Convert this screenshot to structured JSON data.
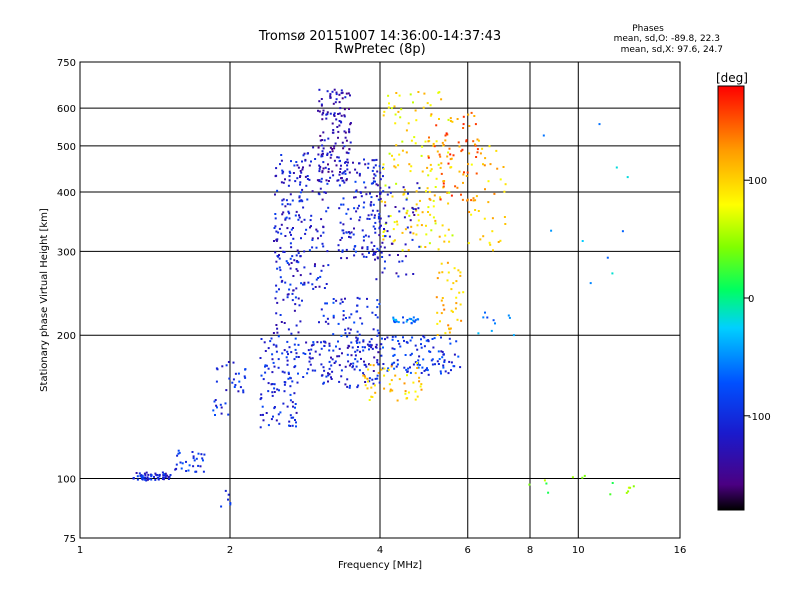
{
  "chart_data": {
    "type": "scatter",
    "title": "Tromsø 20151007 14:36:00-14:37:43",
    "subtitle": "RwPretec (8p)",
    "xlabel": "Frequency [MHz]",
    "ylabel": "Stationary phase Virtual Height [km]",
    "x_scale": "log",
    "y_scale": "log",
    "xlim": [
      1,
      16
    ],
    "ylim": [
      75,
      750
    ],
    "x_ticks": [
      1,
      2,
      4,
      6,
      8,
      10,
      16
    ],
    "x_tick_labels": [
      "1",
      "2",
      "4",
      "6",
      "8",
      "10",
      "16"
    ],
    "y_ticks": [
      75,
      100,
      200,
      300,
      400,
      500,
      600,
      750
    ],
    "y_tick_labels": [
      "75",
      "100",
      "200",
      "300",
      "400",
      "500",
      "600",
      "750"
    ],
    "grid": true,
    "annotation": {
      "heading": "Phases",
      "line_o": "mean, sd,O: -89.8, 22.3",
      "line_x": "mean, sd,X:  97.6, 24.7"
    },
    "colorbar": {
      "label": "[deg]",
      "range": [
        -180,
        180
      ],
      "tick_values": [
        100,
        0,
        -100
      ],
      "tick_labels": [
        "100",
        "0",
        "-100"
      ],
      "colormap": "rainbow"
    },
    "clusters": [
      {
        "x": [
          1.28,
          1.52
        ],
        "y": [
          99,
          103
        ],
        "phase": -110,
        "n": 60
      },
      {
        "x": [
          1.5,
          1.78
        ],
        "y": [
          103,
          115
        ],
        "phase": -95,
        "n": 30
      },
      {
        "x": [
          1.85,
          2.15
        ],
        "y": [
          135,
          180
        ],
        "phase": -100,
        "n": 35
      },
      {
        "x": [
          2.3,
          2.75
        ],
        "y": [
          128,
          200
        ],
        "phase": -105,
        "n": 110
      },
      {
        "x": [
          2.45,
          2.8
        ],
        "y": [
          200,
          480
        ],
        "phase": -110,
        "n": 150
      },
      {
        "x": [
          2.75,
          3.15
        ],
        "y": [
          250,
          500
        ],
        "phase": -115,
        "n": 90
      },
      {
        "x": [
          3.0,
          3.5
        ],
        "y": [
          420,
          660
        ],
        "phase": -130,
        "n": 140
      },
      {
        "x": [
          3.3,
          4.1
        ],
        "y": [
          290,
          470
        ],
        "phase": -110,
        "n": 150
      },
      {
        "x": [
          2.8,
          4.0
        ],
        "y": [
          155,
          195
        ],
        "phase": -110,
        "n": 140
      },
      {
        "x": [
          3.0,
          4.0
        ],
        "y": [
          195,
          240
        ],
        "phase": -100,
        "n": 60
      },
      {
        "x": [
          4.0,
          5.8
        ],
        "y": [
          165,
          200
        ],
        "phase": -95,
        "n": 110
      },
      {
        "x": [
          3.7,
          4.9
        ],
        "y": [
          145,
          175
        ],
        "phase": 100,
        "n": 50
      },
      {
        "x": [
          4.2,
          4.8
        ],
        "y": [
          212,
          218
        ],
        "phase": -60,
        "n": 25
      },
      {
        "x": [
          4.0,
          5.6
        ],
        "y": [
          300,
          650
        ],
        "phase": 90,
        "n": 150
      },
      {
        "x": [
          5.0,
          6.3
        ],
        "y": [
          380,
          600
        ],
        "phase": 140,
        "n": 70
      },
      {
        "x": [
          3.9,
          4.8
        ],
        "y": [
          260,
          420
        ],
        "phase": -120,
        "n": 60
      },
      {
        "x": [
          5.2,
          5.9
        ],
        "y": [
          200,
          290
        ],
        "phase": 110,
        "n": 40
      },
      {
        "x": [
          6.0,
          7.2
        ],
        "y": [
          300,
          520
        ],
        "phase": 105,
        "n": 40
      },
      {
        "x": [
          6.2,
          7.5
        ],
        "y": [
          200,
          230
        ],
        "phase": -60,
        "n": 10
      },
      {
        "x": [
          7.6,
          13.0
        ],
        "y": [
          92,
          102
        ],
        "phase": 40,
        "n": 14
      },
      {
        "x": [
          1.85,
          2.05
        ],
        "y": [
          87,
          95
        ],
        "phase": -100,
        "n": 6
      },
      {
        "x": [
          8.5,
          13.0
        ],
        "y": [
          250,
          600
        ],
        "phase": -40,
        "n": 10
      }
    ]
  }
}
